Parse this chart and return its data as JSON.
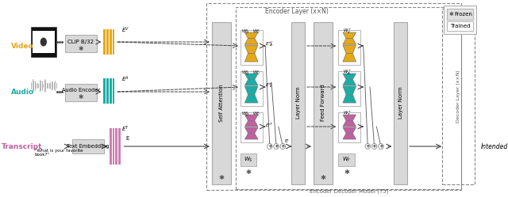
{
  "bg_color": "#ffffff",
  "encoder_layer_label": "Encoder Layer (x×N)",
  "encoder_decoder_label": "Encoder Decoder Model (T5)",
  "decoder_layer_label": "Decoder Layer (x×N)",
  "frozen_label": "Frozen",
  "trained_label": "Trained",
  "video_label": "Video",
  "audio_label": "Audio",
  "transcript_label": "Transcript",
  "clip_label": "CLIP B/32",
  "audio_enc_label": "Audio Encoder",
  "text_emb_label": "Text Embedding",
  "self_attn_label": "Self Attention",
  "feed_fwd_label": "Feed Forward",
  "layer_norm1_label": "Layer Norm",
  "layer_norm2_label": "Layer Norm",
  "intended_label": "Intended",
  "color_video": "#E6A817",
  "color_audio": "#1AADA5",
  "color_transcript": "#C060A0",
  "color_gray_box": "#d8d8d8",
  "color_arrow": "#444444"
}
